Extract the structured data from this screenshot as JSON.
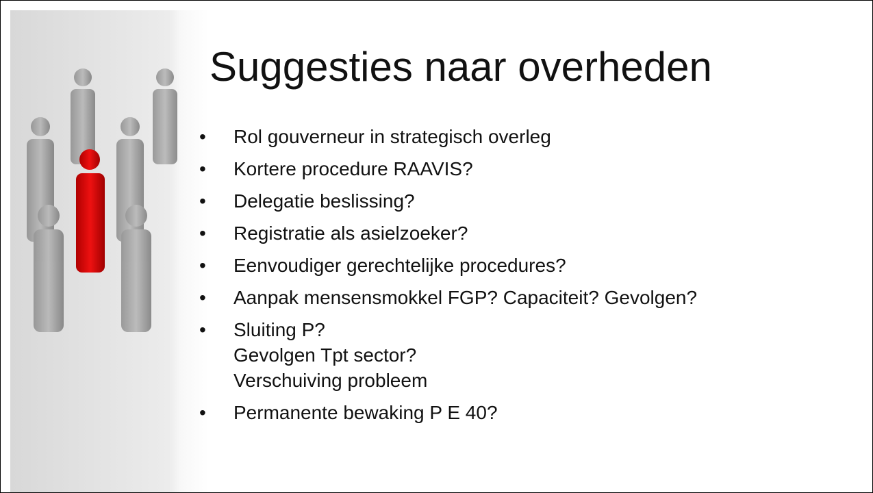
{
  "title": "Suggesties naar overheden",
  "bullets": [
    [
      "Rol gouverneur in strategisch overleg"
    ],
    [
      "Kortere procedure RAAVIS?"
    ],
    [
      "Delegatie beslissing?"
    ],
    [
      "Registratie als asielzoeker?"
    ],
    [
      "Eenvoudiger gerechtelijke procedures?"
    ],
    [
      "Aanpak mensensmokkel FGP? Capaciteit? Gevolgen?"
    ],
    [
      "Sluiting P?",
      "Gevolgen Tpt sector?",
      "Verschuiving probleem"
    ],
    [
      "Permanente bewaking P E 40?"
    ]
  ]
}
